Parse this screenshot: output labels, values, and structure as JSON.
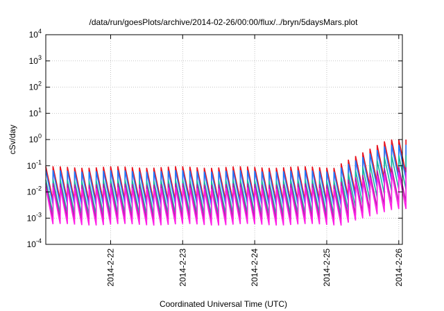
{
  "chart_data": {
    "type": "line",
    "title": "/data/run/goesPlots/archive/2014-02-26/00:00/flux/../bryn/5daysMars.plot",
    "xlabel": "Coordinated Universal Time (UTC)",
    "ylabel": "cSv/day",
    "y_scale": "log",
    "ylim_exponents": [
      -4,
      4
    ],
    "y_ticks": [
      {
        "base": "10",
        "exp": "-4"
      },
      {
        "base": "10",
        "exp": "-3"
      },
      {
        "base": "10",
        "exp": "-2"
      },
      {
        "base": "10",
        "exp": "-1"
      },
      {
        "base": "10",
        "exp": "0"
      },
      {
        "base": "10",
        "exp": "1"
      },
      {
        "base": "10",
        "exp": "2"
      },
      {
        "base": "10",
        "exp": "3"
      },
      {
        "base": "10",
        "exp": "4"
      }
    ],
    "x_range_days": [
      "2014-02-21 03:00",
      "2014-02-26 01:00"
    ],
    "x_ticks": [
      "2014-2-22",
      "2014-2-23",
      "2014-2-24",
      "2014-2-25",
      "2014-2-26"
    ],
    "x_tick_days": [
      1,
      2,
      3,
      4,
      5
    ],
    "x_start_offset_days": 0.1,
    "x_end_offset_days": 5.05,
    "grid": true,
    "pattern": "sawtooth",
    "tooth_period_days": 0.1,
    "series": [
      {
        "color": "#e8121e",
        "peak_log10_before": -1.05,
        "peak_log10_after": 0.0,
        "drop_decades": 1.3
      },
      {
        "color": "#1e78ff",
        "peak_log10_before": -1.2,
        "peak_log10_after": -0.2,
        "drop_decades": 1.3
      },
      {
        "color": "#18b8a0",
        "peak_log10_before": -1.55,
        "peak_log10_after": -0.6,
        "drop_decades": 1.3
      },
      {
        "color": "#b31ca8",
        "peak_log10_before": -1.7,
        "peak_log10_after": -1.05,
        "drop_decades": 1.35
      },
      {
        "color": "#ff1ee6",
        "peak_log10_before": -1.85,
        "peak_log10_after": -1.25,
        "drop_decades": 1.4
      }
    ],
    "rise_start_day": 4.1,
    "rise_end_day": 4.85
  }
}
